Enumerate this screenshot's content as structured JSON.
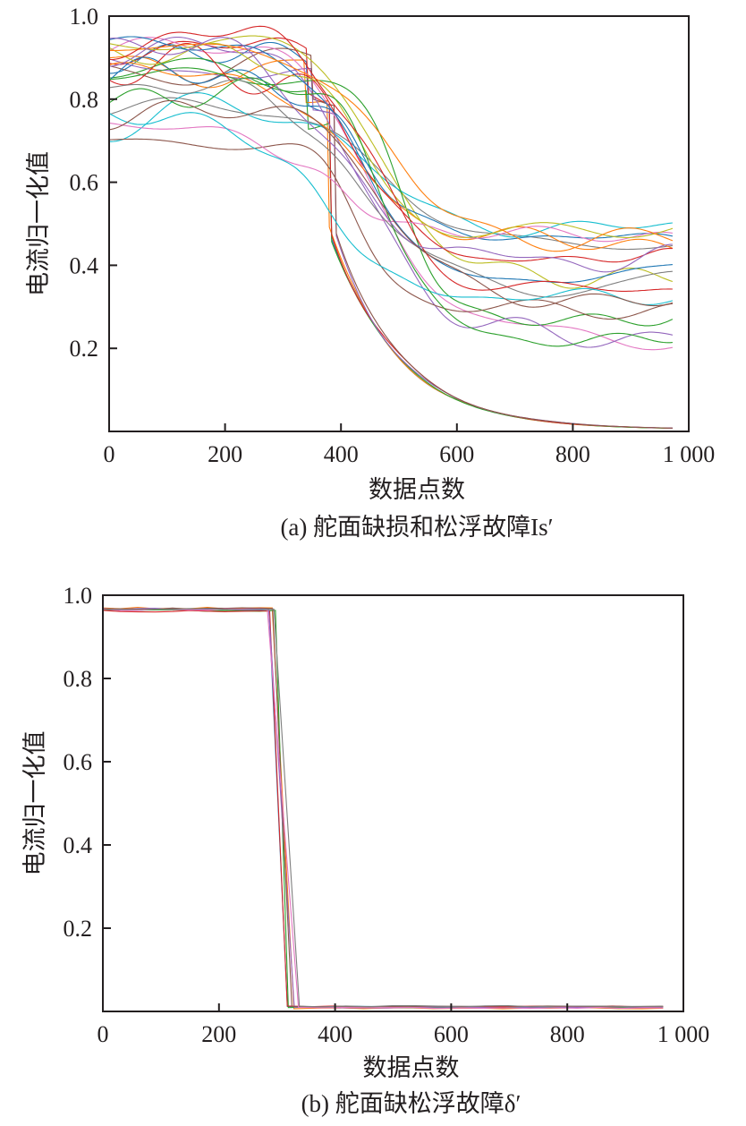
{
  "chart_data": [
    {
      "type": "line",
      "ylabel": "电流归一化值",
      "xlabel": "数据点数",
      "caption": "(a) 舵面缺损和松浮故障Is′",
      "xlim": [
        0,
        1000
      ],
      "ylim": [
        0,
        1.0
      ],
      "x_tick_labels": [
        "0",
        "200",
        "400",
        "600",
        "800",
        "1 000"
      ],
      "x_tick_values": [
        0,
        200,
        400,
        600,
        800,
        1000
      ],
      "y_tick_labels": [
        "0.2",
        "0.4",
        "0.6",
        "0.8",
        "1.0"
      ],
      "y_tick_values": [
        0.2,
        0.4,
        0.6,
        0.8,
        1.0
      ],
      "x_start": 0,
      "x_end": 975,
      "group_1": {
        "description": "fast-decay curves",
        "count": 6,
        "plateau_range": [
          0.8,
          0.95
        ],
        "drop_center_range": [
          375,
          392
        ],
        "drop_width": 50,
        "final_value": 0.0
      },
      "group_2": {
        "description": "slow-decay curves",
        "count": 20,
        "plateau_range": [
          0.7,
          0.95
        ],
        "drop_center_range": [
          385,
          520
        ],
        "final_value_range": [
          0.22,
          0.5
        ]
      },
      "grid": false,
      "legend": "none"
    },
    {
      "type": "line",
      "ylabel": "电流归一化值",
      "xlabel": "数据点数",
      "caption": "(b) 舵面缺松浮故障δ′",
      "xlim": [
        0,
        1000
      ],
      "ylim": [
        0,
        1.0
      ],
      "x_tick_labels": [
        "0",
        "200",
        "400",
        "600",
        "800",
        "1 000"
      ],
      "x_tick_values": [
        0,
        200,
        400,
        600,
        800,
        1000
      ],
      "y_tick_labels": [
        "0.2",
        "0.4",
        "0.6",
        "0.8",
        "1.0"
      ],
      "y_tick_values": [
        0.2,
        0.4,
        0.6,
        0.8,
        1.0
      ],
      "x_start": 0,
      "x_end": 965,
      "series_count": 8,
      "high_value_range": [
        0.96,
        0.97
      ],
      "low_value": 0.01,
      "drop_start_range": [
        282,
        300
      ],
      "drop_end_range": [
        315,
        340
      ],
      "grid": false,
      "legend": "none"
    }
  ],
  "colors": [
    "#1f77b4",
    "#ff7f0e",
    "#2ca02c",
    "#d62728",
    "#9467bd",
    "#8c564b",
    "#e377c2",
    "#7f7f7f",
    "#bcbd22",
    "#17becf"
  ]
}
